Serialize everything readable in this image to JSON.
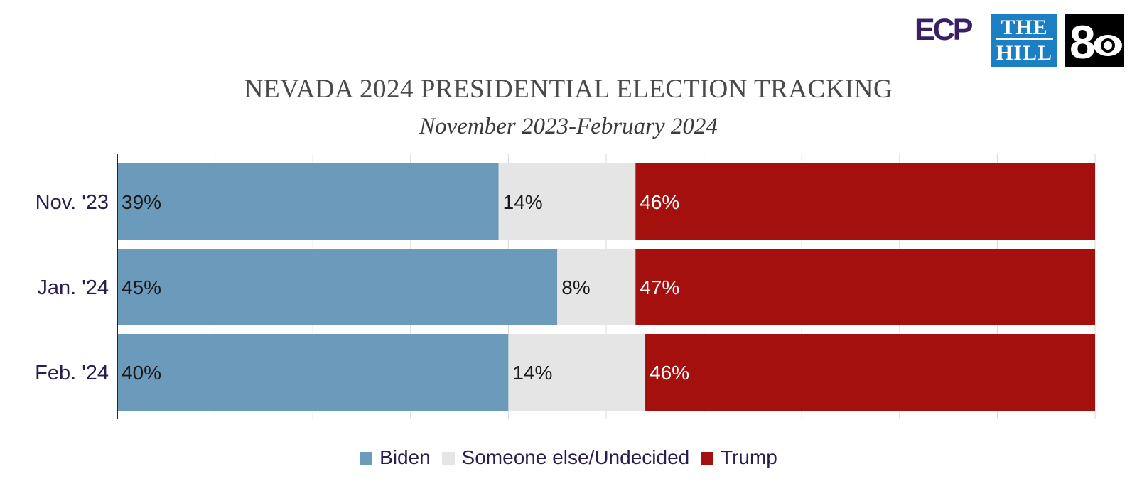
{
  "logos": {
    "ecp": "ECP",
    "hill_line1": "THE",
    "hill_line2": "HILL",
    "cbs_channel": "8"
  },
  "chart_data": {
    "type": "bar",
    "orientation": "horizontal",
    "stacked": true,
    "title": "NEVADA 2024 PRESIDENTIAL ELECTION TRACKING",
    "subtitle": "November 2023-February 2024",
    "categories": [
      "Nov. '23",
      "Jan. '24",
      "Feb. '24"
    ],
    "series": [
      {
        "name": "Biden",
        "values": [
          39,
          45,
          40
        ],
        "labels": [
          "39%",
          "45%",
          "40%"
        ],
        "color": "#6b9aba",
        "label_color": "#1a1a1a"
      },
      {
        "name": "Someone else/Undecided",
        "values": [
          14,
          8,
          14
        ],
        "labels": [
          "14%",
          "8%",
          "14%"
        ],
        "color": "#e5e5e5",
        "label_color": "#1a1a1a"
      },
      {
        "name": "Trump",
        "values": [
          46,
          47,
          46
        ],
        "labels": [
          "46%",
          "47%",
          "46%"
        ],
        "color": "#a3100e",
        "label_color": "#ffffff"
      }
    ],
    "xlim": [
      0,
      100
    ],
    "grid": true,
    "legend_position": "bottom",
    "axis_color": "#2b1d4f",
    "category_label_color": "#2b1d4f"
  }
}
